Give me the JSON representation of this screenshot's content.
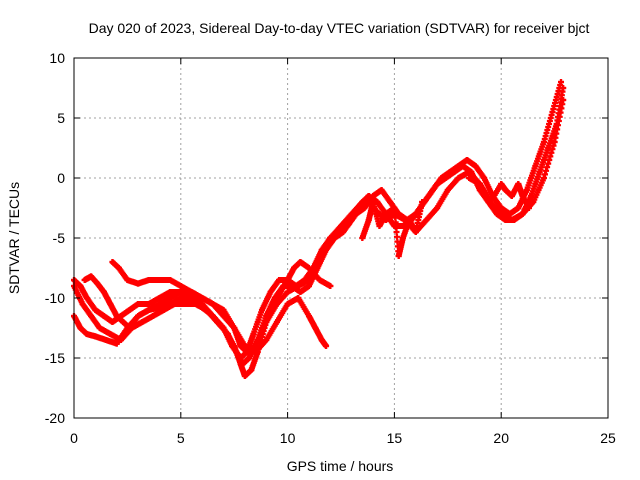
{
  "chart_data": {
    "type": "scatter",
    "title": "Day 020 of 2023, Sidereal Day-to-day VTEC variation (SDTVAR) for receiver bjct",
    "xlabel": "GPS time / hours",
    "ylabel": "SDTVAR / TECUs",
    "xlim": [
      0,
      25
    ],
    "ylim": [
      -20,
      10
    ],
    "xticks": [
      "0",
      "5",
      "10",
      "15",
      "20",
      "25"
    ],
    "yticks": [
      "-20",
      "-15",
      "-10",
      "-5",
      "0",
      "5",
      "10"
    ],
    "grid": true,
    "marker": "+",
    "color": "#ff0000",
    "series": [
      {
        "x": [
          0.0,
          0.3,
          0.6,
          1.0,
          1.5,
          2.0,
          2.5,
          3.0,
          3.5,
          4.0,
          4.5,
          5.0,
          5.5,
          6.0,
          6.5,
          7.0,
          7.5,
          7.8,
          8.0,
          8.3,
          8.6,
          9.0,
          9.5,
          10.0,
          10.5,
          11.0,
          11.5,
          12.0,
          12.5,
          13.0,
          13.5,
          13.8,
          14.0,
          14.3,
          14.6,
          15.0,
          15.5,
          16.0,
          16.5,
          17.0,
          17.5,
          18.0,
          18.5,
          19.0,
          19.5,
          20.0,
          20.5,
          21.0,
          21.5,
          22.0,
          22.5,
          22.9
        ],
        "y": [
          -11.5,
          -12.5,
          -13.0,
          -13.2,
          -13.5,
          -13.8,
          -12.5,
          -11.5,
          -11.0,
          -10.8,
          -10.5,
          -10.0,
          -10.3,
          -10.8,
          -11.5,
          -12.5,
          -14.0,
          -15.5,
          -16.5,
          -16.0,
          -14.5,
          -12.0,
          -10.5,
          -9.5,
          -9.0,
          -8.5,
          -6.5,
          -5.0,
          -4.0,
          -3.0,
          -2.0,
          -1.5,
          -2.5,
          -3.0,
          -3.5,
          -3.0,
          -3.5,
          -4.5,
          -3.5,
          -2.5,
          -1.0,
          0.0,
          0.5,
          -0.5,
          -2.0,
          -3.0,
          -3.5,
          -3.0,
          -2.0,
          0.0,
          3.0,
          6.5
        ]
      },
      {
        "x": [
          0.0,
          0.4,
          0.8,
          1.2,
          1.7,
          2.2,
          2.7,
          3.2,
          3.7,
          4.2,
          4.7,
          5.2,
          5.7,
          6.2,
          6.7,
          7.2,
          7.6,
          7.9,
          8.2,
          8.6,
          9.0,
          9.4,
          9.8,
          10.2,
          10.6,
          11.0,
          11.4,
          11.8,
          12.2,
          12.6,
          13.0,
          13.4,
          13.8,
          14.2,
          14.6,
          15.0,
          15.4,
          15.8,
          16.2,
          16.6,
          17.0,
          17.4,
          17.8,
          18.2,
          18.6,
          19.0,
          19.4,
          19.8,
          20.2,
          20.6,
          21.0,
          21.4,
          21.8,
          22.2,
          22.6,
          22.9
        ],
        "y": [
          -9.0,
          -10.5,
          -11.5,
          -12.5,
          -13.0,
          -13.5,
          -12.5,
          -12.0,
          -11.5,
          -11.0,
          -10.5,
          -10.5,
          -10.5,
          -11.0,
          -12.0,
          -13.0,
          -14.5,
          -15.5,
          -15.0,
          -13.5,
          -11.5,
          -10.0,
          -9.0,
          -9.0,
          -9.5,
          -9.0,
          -7.5,
          -6.0,
          -5.0,
          -4.5,
          -3.5,
          -2.5,
          -1.5,
          -2.0,
          -3.0,
          -4.0,
          -4.0,
          -3.5,
          -2.5,
          -1.5,
          -0.5,
          0.0,
          0.5,
          1.0,
          0.5,
          -1.0,
          -2.0,
          -3.0,
          -3.5,
          -3.5,
          -3.0,
          -1.5,
          0.5,
          2.5,
          4.5,
          7.5
        ]
      },
      {
        "x": [
          0.0,
          0.3,
          0.6,
          1.0,
          1.4,
          1.8,
          2.2,
          2.6,
          3.0,
          3.5,
          4.0,
          4.5,
          5.0,
          5.5,
          6.0,
          6.5,
          7.0,
          7.4,
          7.8,
          8.1,
          8.4,
          8.8,
          9.2,
          9.6,
          10.0,
          10.4,
          10.8,
          11.2,
          11.6,
          12.0,
          12.4,
          12.8,
          13.2,
          13.6,
          14.0,
          14.4,
          14.8,
          15.2,
          15.6,
          16.0,
          16.4,
          16.8,
          17.2,
          17.6,
          18.0,
          18.4,
          18.8,
          19.2,
          19.6,
          20.0,
          20.4,
          20.8,
          21.2,
          21.6,
          22.0,
          22.4,
          22.8
        ],
        "y": [
          -8.5,
          -9.0,
          -10.0,
          -11.0,
          -11.5,
          -12.0,
          -11.5,
          -11.0,
          -10.5,
          -10.5,
          -10.0,
          -9.5,
          -9.5,
          -10.0,
          -10.5,
          -11.5,
          -12.5,
          -14.0,
          -15.0,
          -14.5,
          -13.0,
          -11.0,
          -9.5,
          -8.5,
          -8.5,
          -9.0,
          -8.5,
          -7.5,
          -6.0,
          -5.0,
          -4.5,
          -4.0,
          -3.0,
          -2.5,
          -1.5,
          -1.0,
          -2.0,
          -3.0,
          -3.5,
          -3.0,
          -2.0,
          -1.0,
          0.0,
          0.5,
          1.0,
          1.5,
          1.0,
          0.0,
          -1.5,
          -2.5,
          -3.0,
          -2.5,
          -1.0,
          1.0,
          3.0,
          5.5,
          8.0
        ]
      },
      {
        "x": [
          0.5,
          0.8,
          1.1,
          1.4,
          1.7,
          2.0,
          2.3,
          2.6,
          3.0,
          3.5,
          4.0,
          4.5,
          5.0,
          5.5,
          6.0,
          6.5,
          7.0,
          7.5,
          8.0,
          8.5,
          9.0,
          9.5,
          10.0,
          10.5,
          11.0,
          11.3,
          11.6,
          11.8
        ],
        "y": [
          -8.5,
          -8.2,
          -8.8,
          -9.5,
          -10.5,
          -11.5,
          -12.0,
          -12.5,
          -11.5,
          -11.0,
          -10.5,
          -10.0,
          -9.5,
          -9.5,
          -10.0,
          -10.5,
          -11.0,
          -12.5,
          -14.0,
          -14.5,
          -13.5,
          -12.0,
          -10.5,
          -10.0,
          -11.5,
          -12.5,
          -13.5,
          -14.0
        ]
      },
      {
        "x": [
          1.8,
          2.1,
          2.5,
          3.0,
          3.5,
          4.0,
          4.5,
          5.0,
          5.5,
          6.0,
          6.5,
          7.0,
          7.5,
          7.8,
          8.1,
          8.5,
          9.0,
          9.5,
          10.0,
          10.3,
          10.6,
          11.0,
          11.5,
          12.0
        ],
        "y": [
          -7.0,
          -7.5,
          -8.5,
          -8.8,
          -8.5,
          -8.5,
          -8.5,
          -9.0,
          -9.5,
          -10.0,
          -10.5,
          -11.5,
          -12.5,
          -14.0,
          -14.5,
          -14.0,
          -12.0,
          -10.0,
          -8.5,
          -7.5,
          -7.0,
          -7.5,
          -8.5,
          -9.0
        ]
      },
      {
        "x": [
          13.5,
          13.8,
          14.0,
          14.3,
          14.6,
          15.0,
          15.2,
          15.4,
          15.7,
          16.0,
          16.3
        ],
        "y": [
          -5.0,
          -3.5,
          -2.0,
          -4.0,
          -3.0,
          -2.5,
          -6.5,
          -5.0,
          -3.5,
          -4.5,
          -2.0
        ]
      },
      {
        "x": [
          18.5,
          19.0,
          19.5,
          20.0,
          20.2,
          20.5,
          20.8,
          21.0,
          21.3
        ],
        "y": [
          0.0,
          -0.5,
          -2.0,
          -0.5,
          -1.0,
          -1.5,
          -0.5,
          -1.5,
          -2.5
        ]
      }
    ]
  }
}
